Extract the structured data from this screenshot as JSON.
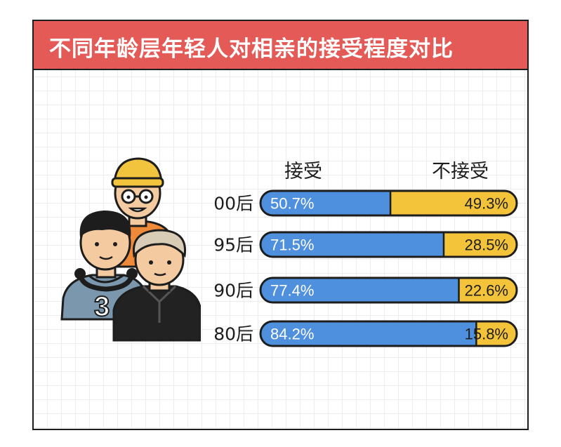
{
  "title": "不同年龄层年轻人对相亲的接受程度对比",
  "colors": {
    "title_bar": "#e35a57",
    "accept": "#4e8fde",
    "reject": "#f3c33a",
    "outline": "#1d1d1d"
  },
  "jersey_number": "3",
  "chart_data": {
    "type": "bar",
    "stacked": true,
    "orientation": "horizontal",
    "title": "不同年龄层年轻人对相亲的接受程度对比",
    "categories": [
      "00后",
      "95后",
      "90后",
      "80后"
    ],
    "series": [
      {
        "name": "接受",
        "values": [
          50.7,
          71.5,
          77.4,
          84.2
        ],
        "labels": [
          "50.7%",
          "71.5%",
          "77.4%",
          "84.2%"
        ],
        "color": "#4e8fde"
      },
      {
        "name": "不接受",
        "values": [
          49.3,
          28.5,
          22.6,
          15.8
        ],
        "labels": [
          "49.3%",
          "28.5%",
          "22.6%",
          "15.8%"
        ],
        "color": "#f3c33a"
      }
    ],
    "xlim": [
      0,
      100
    ],
    "legend": "top"
  }
}
